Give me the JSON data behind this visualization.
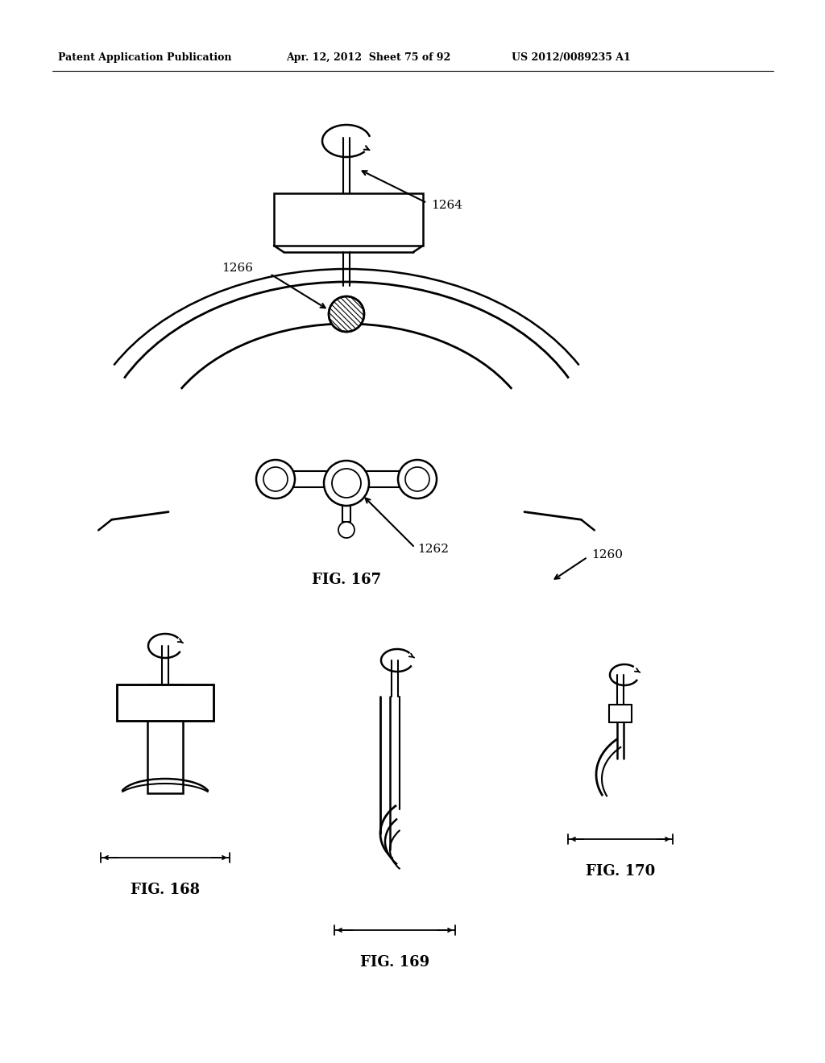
{
  "bg_color": "#ffffff",
  "line_color": "#000000",
  "header_left": "Patent Application Publication",
  "header_mid": "Apr. 12, 2012  Sheet 75 of 92",
  "header_right": "US 2012/0089235 A1",
  "fig167_label": "FIG. 167",
  "fig168_label": "FIG. 168",
  "fig169_label": "FIG. 169",
  "fig170_label": "FIG. 170",
  "ref_1264": "1264",
  "ref_1266": "1266",
  "ref_1262": "1262",
  "ref_1260": "1260"
}
